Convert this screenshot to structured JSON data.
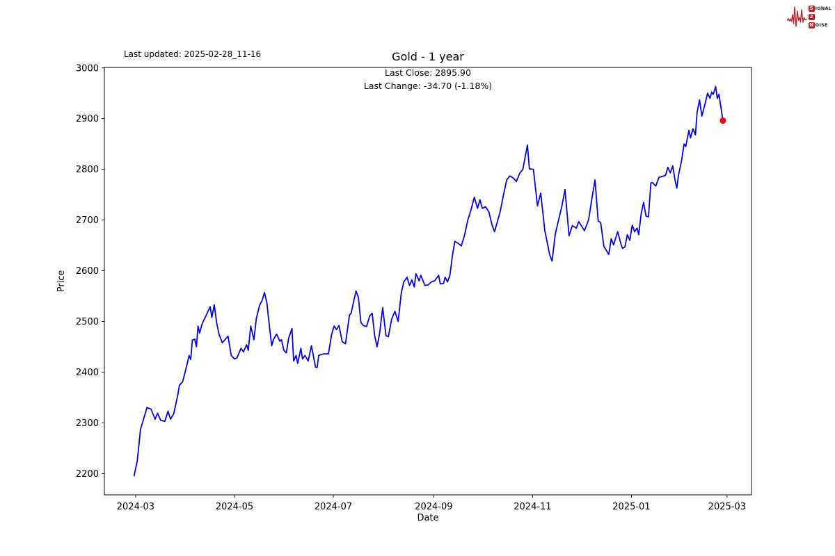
{
  "header": {
    "last_updated": "Last updated: 2025-02-28_11-16"
  },
  "logo": {
    "line1_initial": "S",
    "line1_rest": "IGNAL",
    "line2": "2",
    "line3_initial": "N",
    "line3_rest": "OISE",
    "color": "#c41e25",
    "waveform_icon": "ecg-heartbeat"
  },
  "chart_data": {
    "type": "line",
    "title": "Gold - 1 year",
    "annotations": [
      "Last Close: 2895.90",
      "Last Change: -34.70 (-1.18%)"
    ],
    "last_close": 2895.9,
    "last_change": -34.7,
    "last_change_pct": "-1.18%",
    "xlabel": "Date",
    "ylabel": "Price",
    "x_tick_labels": [
      "2024-03",
      "2024-05",
      "2024-07",
      "2024-09",
      "2024-11",
      "2025-01",
      "2025-03"
    ],
    "x_tick_days": [
      0,
      61,
      122,
      184,
      245,
      306,
      365
    ],
    "y_ticks": [
      2200,
      2300,
      2400,
      2500,
      2600,
      2700,
      2800,
      2900,
      3000
    ],
    "xlim_days": [
      -19.3,
      380.1
    ],
    "ylim": [
      2158,
      3001
    ],
    "grid": false,
    "legend_position": "none",
    "line_color": "#0000ee",
    "marker_color": "#ff0000",
    "series": [
      {
        "name": "Gold",
        "x_unit": "days since 2024-03-01",
        "points": [
          [
            -1,
            2195
          ],
          [
            1,
            2225
          ],
          [
            2,
            2256
          ],
          [
            3,
            2287
          ],
          [
            4.5,
            2303
          ],
          [
            7,
            2330
          ],
          [
            9.5,
            2327
          ],
          [
            12,
            2307
          ],
          [
            13.5,
            2319
          ],
          [
            15.5,
            2305
          ],
          [
            18,
            2303
          ],
          [
            20,
            2323
          ],
          [
            21.5,
            2307
          ],
          [
            23.5,
            2318
          ],
          [
            26,
            2355
          ],
          [
            27,
            2374
          ],
          [
            29,
            2381
          ],
          [
            31,
            2406
          ],
          [
            33,
            2433
          ],
          [
            34,
            2425
          ],
          [
            35,
            2463
          ],
          [
            36.5,
            2465
          ],
          [
            37.5,
            2450
          ],
          [
            38.5,
            2491
          ],
          [
            39.5,
            2477
          ],
          [
            41,
            2495
          ],
          [
            46,
            2529
          ],
          [
            47,
            2508
          ],
          [
            48.5,
            2533
          ],
          [
            50,
            2497
          ],
          [
            51.5,
            2474
          ],
          [
            53.5,
            2458
          ],
          [
            57,
            2471
          ],
          [
            59,
            2433
          ],
          [
            61,
            2426
          ],
          [
            62.5,
            2428
          ],
          [
            65,
            2447
          ],
          [
            66.5,
            2440
          ],
          [
            68.5,
            2454
          ],
          [
            69.5,
            2443
          ],
          [
            71,
            2491
          ],
          [
            73,
            2464
          ],
          [
            74.5,
            2506
          ],
          [
            76.5,
            2532
          ],
          [
            78,
            2541
          ],
          [
            79.5,
            2557
          ],
          [
            81,
            2537
          ],
          [
            82.5,
            2493
          ],
          [
            84,
            2452
          ],
          [
            85,
            2464
          ],
          [
            87,
            2475
          ],
          [
            89,
            2461
          ],
          [
            90,
            2464
          ],
          [
            91.5,
            2443
          ],
          [
            93,
            2438
          ],
          [
            94.5,
            2468
          ],
          [
            96.5,
            2486
          ],
          [
            97.5,
            2422
          ],
          [
            99,
            2433
          ],
          [
            100,
            2417
          ],
          [
            102,
            2447
          ],
          [
            103,
            2426
          ],
          [
            104.5,
            2433
          ],
          [
            106.5,
            2422
          ],
          [
            108.5,
            2452
          ],
          [
            111,
            2410
          ],
          [
            112,
            2409
          ],
          [
            113,
            2433
          ],
          [
            116,
            2436
          ],
          [
            119,
            2436
          ],
          [
            121,
            2475
          ],
          [
            122.5,
            2491
          ],
          [
            124,
            2484
          ],
          [
            125.5,
            2492
          ],
          [
            127.5,
            2460
          ],
          [
            129.5,
            2456
          ],
          [
            132,
            2513
          ],
          [
            133,
            2516
          ],
          [
            136,
            2560
          ],
          [
            137.5,
            2547
          ],
          [
            139,
            2498
          ],
          [
            140.5,
            2492
          ],
          [
            142.5,
            2490
          ],
          [
            144.5,
            2511
          ],
          [
            146,
            2516
          ],
          [
            147.5,
            2472
          ],
          [
            149,
            2450
          ],
          [
            150.5,
            2475
          ],
          [
            152.5,
            2527
          ],
          [
            154.5,
            2472
          ],
          [
            156,
            2470
          ],
          [
            158,
            2504
          ],
          [
            160,
            2520
          ],
          [
            162,
            2500
          ],
          [
            164,
            2557
          ],
          [
            165.5,
            2578
          ],
          [
            167.5,
            2587
          ],
          [
            169,
            2571
          ],
          [
            170.5,
            2582
          ],
          [
            172,
            2568
          ],
          [
            173,
            2594
          ],
          [
            175,
            2580
          ],
          [
            176,
            2591
          ],
          [
            178.5,
            2571
          ],
          [
            180.5,
            2572
          ],
          [
            182.5,
            2578
          ],
          [
            184.5,
            2580
          ],
          [
            187,
            2591
          ],
          [
            188,
            2574
          ],
          [
            190,
            2575
          ],
          [
            191,
            2587
          ],
          [
            192.5,
            2578
          ],
          [
            194,
            2592
          ],
          [
            195.5,
            2630
          ],
          [
            197,
            2658
          ],
          [
            199,
            2654
          ],
          [
            201,
            2649
          ],
          [
            203,
            2670
          ],
          [
            205,
            2700
          ],
          [
            207,
            2720
          ],
          [
            209,
            2745
          ],
          [
            211,
            2723
          ],
          [
            212.5,
            2740
          ],
          [
            214,
            2723
          ],
          [
            216,
            2726
          ],
          [
            218,
            2716
          ],
          [
            220,
            2690
          ],
          [
            221.5,
            2677
          ],
          [
            225,
            2717
          ],
          [
            227,
            2749
          ],
          [
            229,
            2779
          ],
          [
            231,
            2787
          ],
          [
            233,
            2783
          ],
          [
            235,
            2776
          ],
          [
            237,
            2792
          ],
          [
            239,
            2800
          ],
          [
            241.8,
            2848
          ],
          [
            243,
            2801
          ],
          [
            245.5,
            2800
          ],
          [
            248,
            2728
          ],
          [
            250,
            2753
          ],
          [
            252.5,
            2680
          ],
          [
            255.5,
            2632
          ],
          [
            257,
            2619
          ],
          [
            259,
            2672
          ],
          [
            261,
            2700
          ],
          [
            263,
            2726
          ],
          [
            265,
            2760
          ],
          [
            267.5,
            2669
          ],
          [
            269.5,
            2689
          ],
          [
            272,
            2684
          ],
          [
            273.5,
            2697
          ],
          [
            277,
            2679
          ],
          [
            279.5,
            2700
          ],
          [
            281.5,
            2740
          ],
          [
            283.5,
            2779
          ],
          [
            285.5,
            2698
          ],
          [
            287,
            2695
          ],
          [
            289,
            2648
          ],
          [
            292,
            2632
          ],
          [
            293.5,
            2663
          ],
          [
            295,
            2651
          ],
          [
            297.5,
            2677
          ],
          [
            299.5,
            2653
          ],
          [
            300.5,
            2644
          ],
          [
            302,
            2647
          ],
          [
            303.5,
            2671
          ],
          [
            305,
            2660
          ],
          [
            306.5,
            2690
          ],
          [
            308,
            2677
          ],
          [
            309.5,
            2684
          ],
          [
            310.5,
            2671
          ],
          [
            312,
            2712
          ],
          [
            313.5,
            2735
          ],
          [
            315,
            2708
          ],
          [
            316.5,
            2706
          ],
          [
            318,
            2773
          ],
          [
            319,
            2774
          ],
          [
            321,
            2767
          ],
          [
            323,
            2784
          ],
          [
            325,
            2786
          ],
          [
            327,
            2788
          ],
          [
            328.5,
            2804
          ],
          [
            330,
            2793
          ],
          [
            331.5,
            2807
          ],
          [
            333,
            2777
          ],
          [
            334,
            2763
          ],
          [
            335,
            2788
          ],
          [
            337,
            2818
          ],
          [
            338.5,
            2850
          ],
          [
            339.5,
            2845
          ],
          [
            341.5,
            2877
          ],
          [
            342.5,
            2862
          ],
          [
            344,
            2880
          ],
          [
            345.5,
            2868
          ],
          [
            346.5,
            2912
          ],
          [
            348,
            2937
          ],
          [
            349.5,
            2905
          ],
          [
            351.5,
            2930
          ],
          [
            353,
            2950
          ],
          [
            354.5,
            2940
          ],
          [
            355.5,
            2952
          ],
          [
            356.5,
            2948
          ],
          [
            358,
            2963
          ],
          [
            359,
            2940
          ],
          [
            360,
            2948
          ],
          [
            362.5,
            2896
          ]
        ]
      }
    ]
  }
}
